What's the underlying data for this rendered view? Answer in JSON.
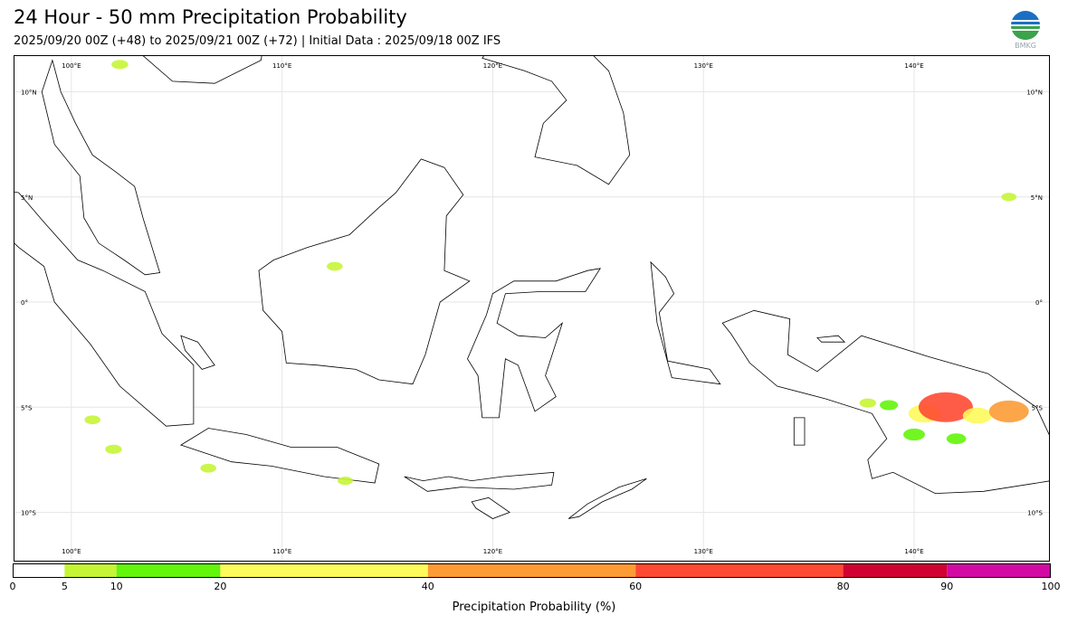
{
  "header": {
    "title": "24 Hour - 50 mm Precipitation Probability",
    "subtitle": "2025/09/20 00Z (+48) to 2025/09/21 00Z (+72) | Initial Data : 2025/09/18 00Z IFS"
  },
  "logo": {
    "text": "BMKG",
    "colors": [
      "#1b6fc2",
      "#3ba34a",
      "#ffffff"
    ]
  },
  "map": {
    "lon_range": [
      97.3,
      146.4
    ],
    "lat_range": [
      -12.3,
      11.7
    ],
    "lon_labels": [
      "100°E",
      "110°E",
      "120°E",
      "130°E",
      "140°E"
    ],
    "lon_values": [
      100,
      110,
      120,
      130,
      140
    ],
    "lat_labels": [
      "10°N",
      "5°N",
      "0°",
      "5°S",
      "10°S"
    ],
    "lat_values": [
      10,
      5,
      0,
      -5,
      -10
    ],
    "gridlines": true,
    "land_fill": "#ffffff",
    "coast_color": "#000000"
  },
  "colorbar": {
    "title": "Precipitation Probability (%)",
    "boundaries": [
      0,
      5,
      10,
      20,
      40,
      60,
      80,
      90,
      100
    ],
    "tick_labels": [
      "0",
      "5",
      "10",
      "20",
      "40",
      "60",
      "80",
      "90",
      "100"
    ],
    "colors": [
      "#ffffff",
      "#c6f536",
      "#63f50a",
      "#fdfa5b",
      "#fd9b35",
      "#ff4a33",
      "#d10232",
      "#d20aa3"
    ]
  },
  "precip_cells": [
    {
      "lon": 140.5,
      "lat": -5.3,
      "prob": 30
    },
    {
      "lon": 141.5,
      "lat": -5.0,
      "prob": 60
    },
    {
      "lon": 143.0,
      "lat": -5.4,
      "prob": 25
    },
    {
      "lon": 144.5,
      "lat": -5.2,
      "prob": 40
    },
    {
      "lon": 140.0,
      "lat": -6.3,
      "prob": 15
    },
    {
      "lon": 142.0,
      "lat": -6.5,
      "prob": 12
    },
    {
      "lon": 137.8,
      "lat": -4.8,
      "prob": 8
    },
    {
      "lon": 138.8,
      "lat": -4.9,
      "prob": 10
    },
    {
      "lon": 101.0,
      "lat": -5.6,
      "prob": 7
    },
    {
      "lon": 102.0,
      "lat": -7.0,
      "prob": 8
    },
    {
      "lon": 106.5,
      "lat": -7.9,
      "prob": 7
    },
    {
      "lon": 102.3,
      "lat": 11.3,
      "prob": 8
    },
    {
      "lon": 144.5,
      "lat": 5.0,
      "prob": 6
    },
    {
      "lon": 112.5,
      "lat": 1.7,
      "prob": 7
    },
    {
      "lon": 113.0,
      "lat": -8.5,
      "prob": 6
    }
  ]
}
